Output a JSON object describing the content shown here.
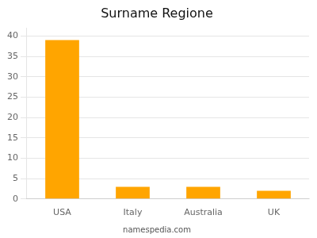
{
  "chart_data": {
    "type": "bar",
    "title": "Surname Regione",
    "categories": [
      "USA",
      "Italy",
      "Australia",
      "UK"
    ],
    "values": [
      39,
      3,
      3,
      2
    ],
    "color": "#FFA500",
    "ylim": [
      0,
      42
    ],
    "yticks": [
      0,
      5,
      10,
      15,
      20,
      25,
      30,
      35,
      40
    ],
    "grid": true,
    "annotation": "namespedia.com"
  }
}
